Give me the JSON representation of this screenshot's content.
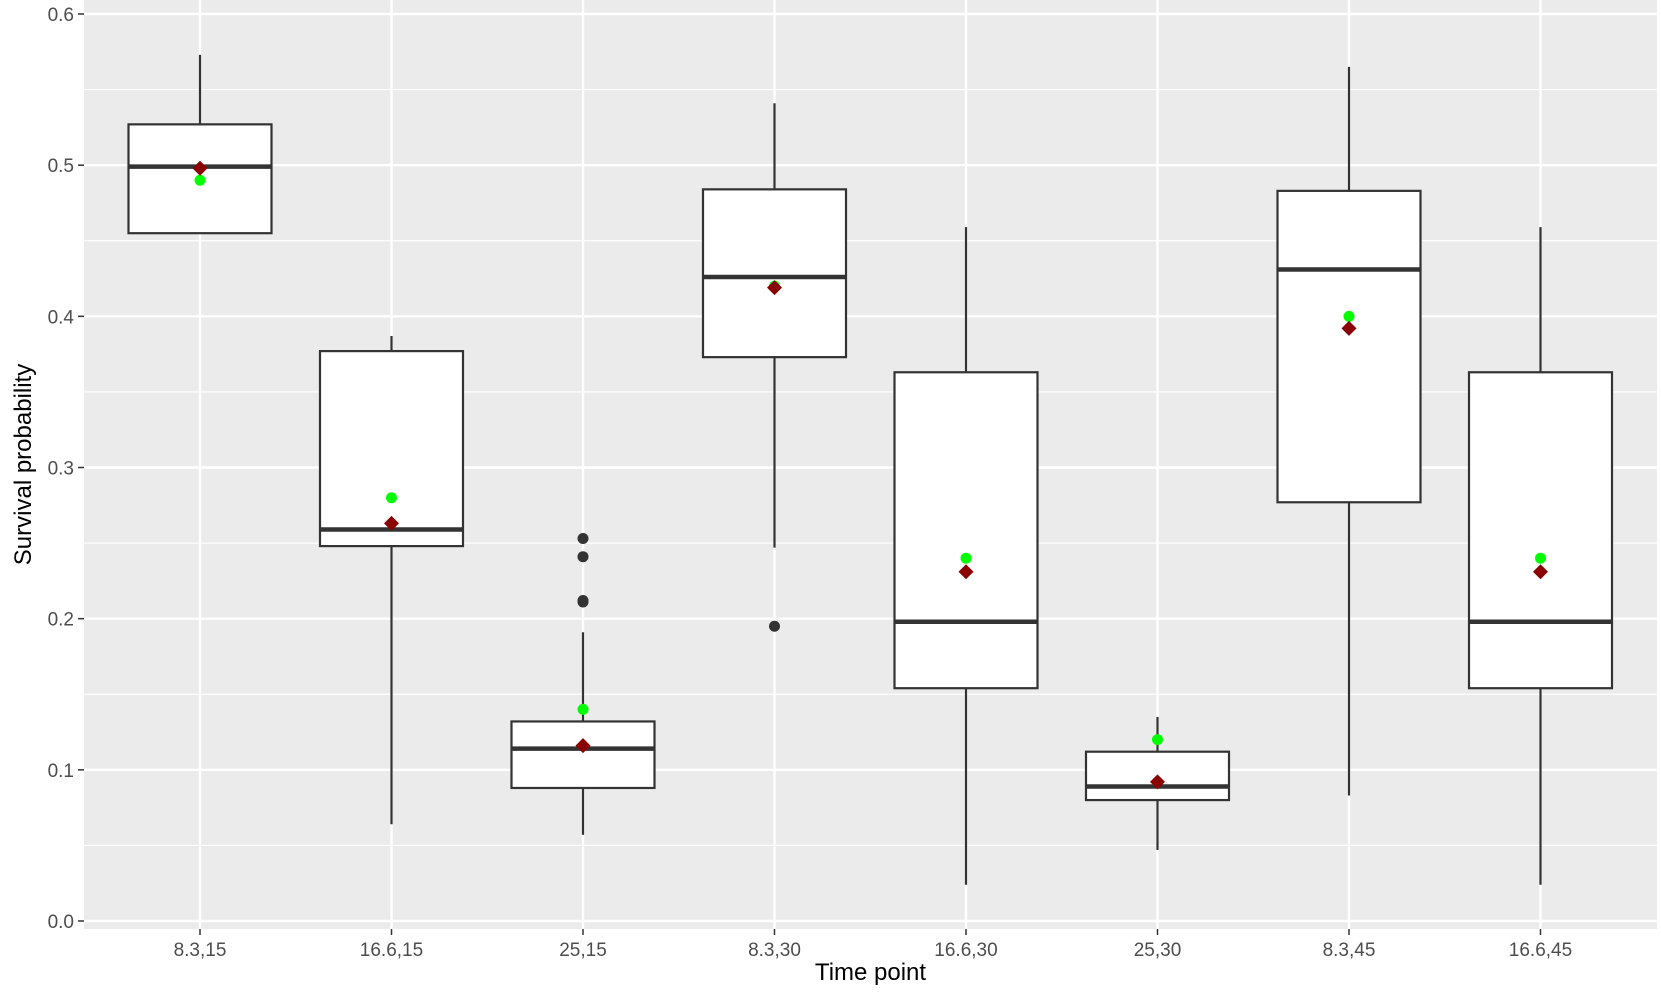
{
  "colors": {
    "panel_bg": "#ebebeb",
    "grid": "#ffffff",
    "box_line": "#333333",
    "box_fill": "#ffffff",
    "outlier": "#333333",
    "mean_marker": "#8b0000",
    "green_marker": "#00ff00",
    "tick_text": "#4d4d4d"
  },
  "chart_data": {
    "type": "boxplot",
    "title": "",
    "xlabel": "Time point",
    "ylabel": "Survival probability",
    "ylim": [
      0,
      0.6
    ],
    "y_ticks": [
      0.0,
      0.1,
      0.2,
      0.3,
      0.4,
      0.5,
      0.6
    ],
    "y_tick_labels": [
      "0.0",
      "0.1",
      "0.2",
      "0.3",
      "0.4",
      "0.5",
      "0.6"
    ],
    "grid": true,
    "legend": "none",
    "categories": [
      "8.3,15",
      "16.6,15",
      "25,15",
      "8.3,30",
      "16.6,30",
      "25,30",
      "8.3,45",
      "16.6,45"
    ],
    "boxes": [
      {
        "category": "8.3,15",
        "whisker_low": 0.455,
        "q1": 0.455,
        "median": 0.499,
        "q3": 0.527,
        "whisker_high": 0.573,
        "outliers": [],
        "mean": 0.498,
        "green_point": 0.49
      },
      {
        "category": "16.6,15",
        "whisker_low": 0.064,
        "q1": 0.248,
        "median": 0.259,
        "q3": 0.377,
        "whisker_high": 0.387,
        "outliers": [],
        "mean": 0.263,
        "green_point": 0.28
      },
      {
        "category": "25,15",
        "whisker_low": 0.057,
        "q1": 0.088,
        "median": 0.114,
        "q3": 0.132,
        "whisker_high": 0.191,
        "outliers": [
          0.211,
          0.212,
          0.241,
          0.253
        ],
        "mean": 0.116,
        "green_point": 0.14
      },
      {
        "category": "8.3,30",
        "whisker_low": 0.247,
        "q1": 0.373,
        "median": 0.426,
        "q3": 0.484,
        "whisker_high": 0.541,
        "outliers": [
          0.195
        ],
        "mean": 0.419,
        "green_point": 0.42
      },
      {
        "category": "16.6,30",
        "whisker_low": 0.024,
        "q1": 0.154,
        "median": 0.198,
        "q3": 0.363,
        "whisker_high": 0.459,
        "outliers": [],
        "mean": 0.231,
        "green_point": 0.24
      },
      {
        "category": "25,30",
        "whisker_low": 0.047,
        "q1": 0.08,
        "median": 0.089,
        "q3": 0.112,
        "whisker_high": 0.135,
        "outliers": [],
        "mean": 0.092,
        "green_point": 0.12
      },
      {
        "category": "8.3,45",
        "whisker_low": 0.083,
        "q1": 0.277,
        "median": 0.431,
        "q3": 0.483,
        "whisker_high": 0.565,
        "outliers": [],
        "mean": 0.392,
        "green_point": 0.4
      },
      {
        "category": "16.6,45",
        "whisker_low": 0.024,
        "q1": 0.154,
        "median": 0.198,
        "q3": 0.363,
        "whisker_high": 0.459,
        "outliers": [],
        "mean": 0.231,
        "green_point": 0.24
      }
    ]
  }
}
